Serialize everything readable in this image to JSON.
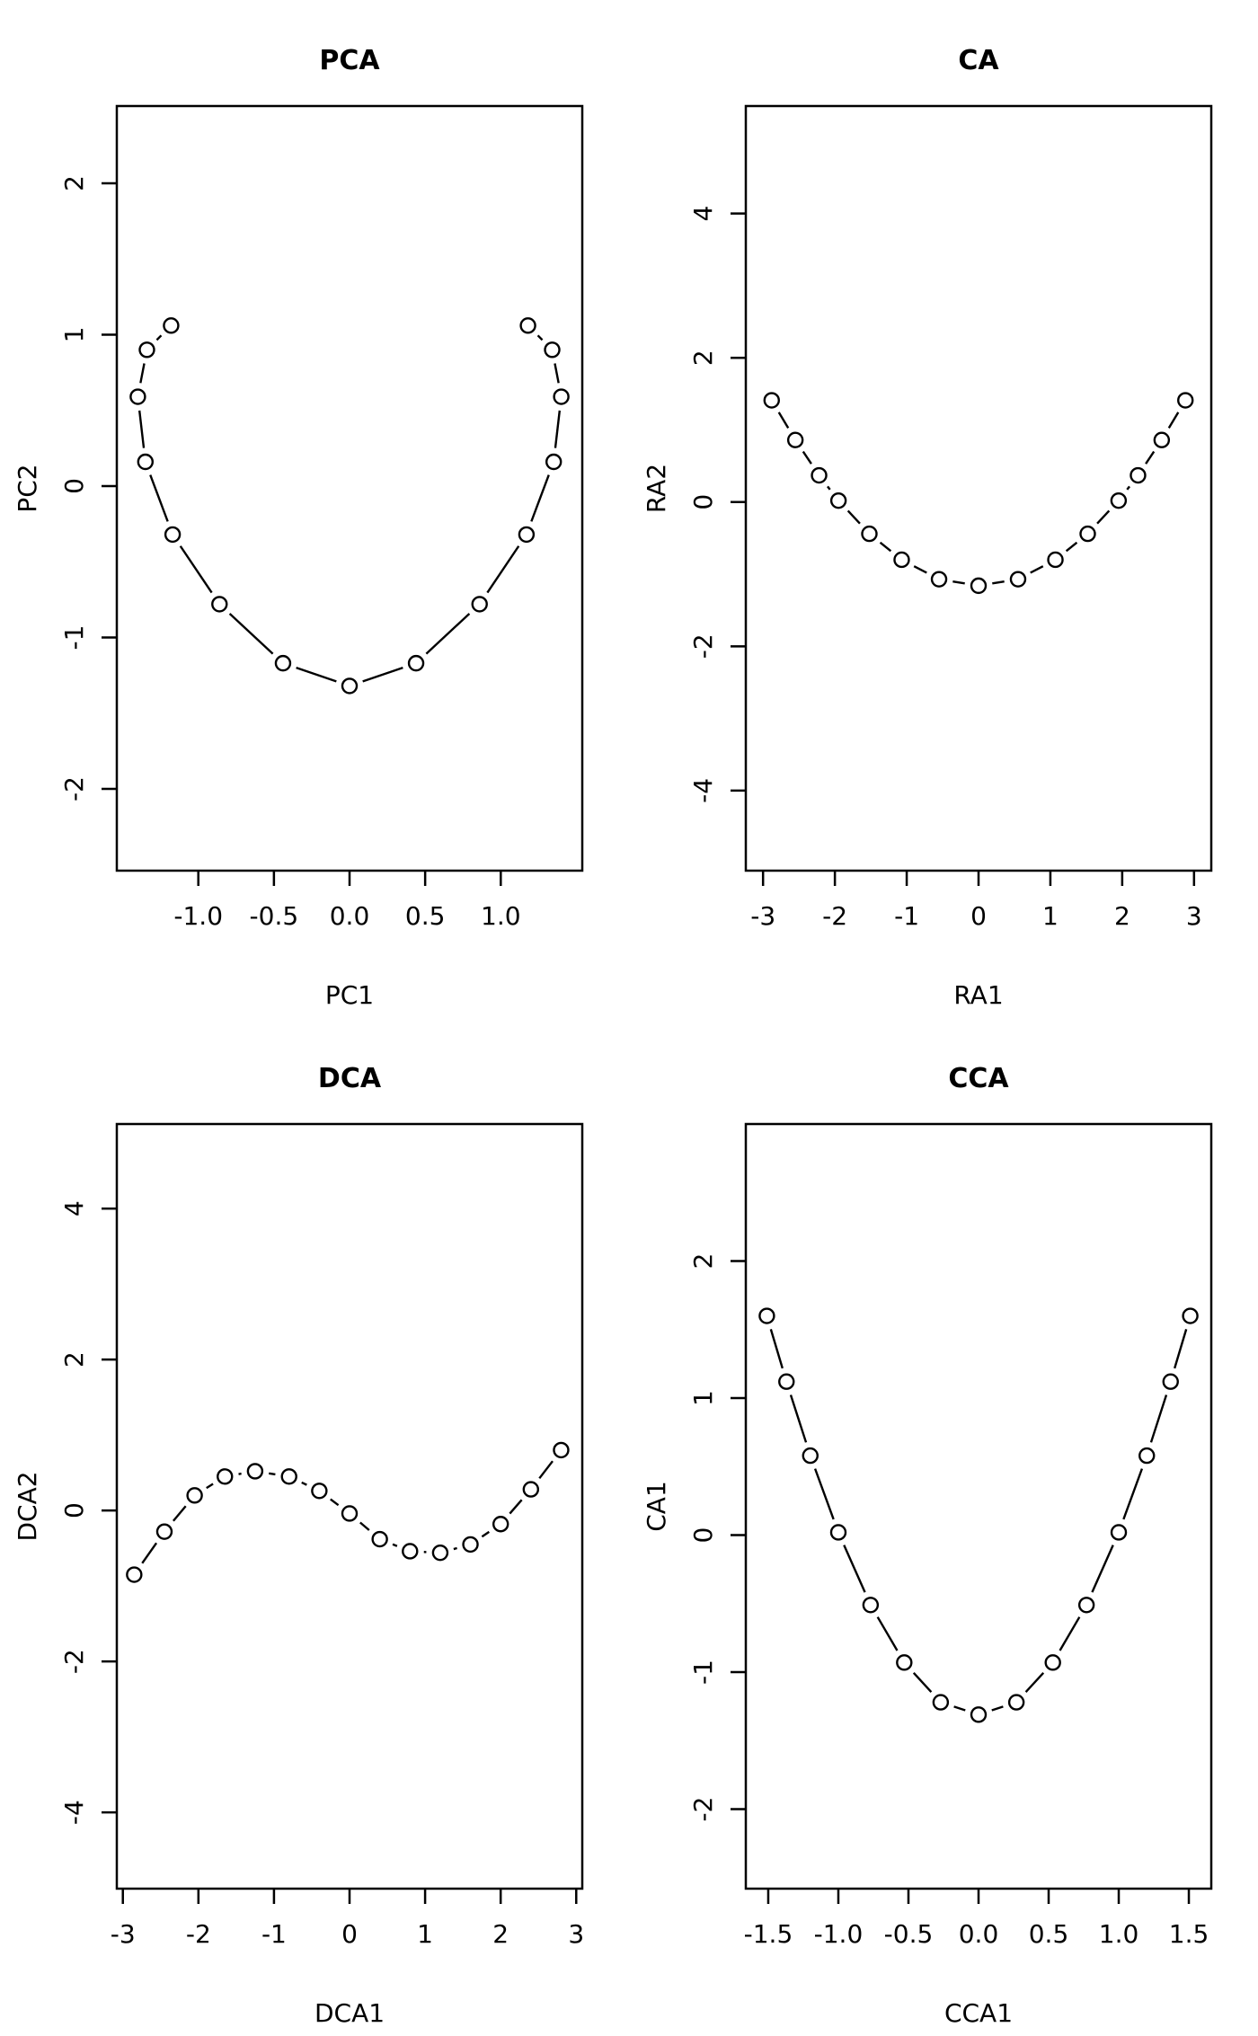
{
  "figure": {
    "background": "#ffffff",
    "foreground": "#000000",
    "marker": "open-circle",
    "line_type": "points-joined-by-segments"
  },
  "chart_data": [
    {
      "type": "scatter",
      "title": "PCA",
      "xlabel": "PC1",
      "ylabel": "PC2",
      "xlim": [
        -1.539,
        1.539
      ],
      "ylim": [
        -2.54,
        2.51
      ],
      "xticks": [
        -1.0,
        -0.5,
        0.0,
        0.5,
        1.0
      ],
      "xtick_labels": [
        "-1.0",
        "-0.5",
        "0.0",
        "0.5",
        "1.0"
      ],
      "yticks": [
        -2,
        -1,
        0,
        1,
        2
      ],
      "ytick_labels": [
        "-2",
        "-1",
        "0",
        "1",
        "2"
      ],
      "x": [
        -1.18,
        -1.34,
        -1.4,
        -1.35,
        -1.17,
        -0.86,
        -0.44,
        0.0,
        0.44,
        0.86,
        1.17,
        1.35,
        1.4,
        1.34,
        1.18
      ],
      "y": [
        1.06,
        0.9,
        0.59,
        0.16,
        -0.32,
        -0.78,
        -1.17,
        -1.32,
        -1.17,
        -0.78,
        -0.32,
        0.16,
        0.59,
        0.9,
        1.06
      ]
    },
    {
      "type": "scatter",
      "title": "CA",
      "xlabel": "RA1",
      "ylabel": "RA2",
      "xlim": [
        -3.24,
        3.24
      ],
      "ylim": [
        -5.11,
        5.49
      ],
      "xticks": [
        -3,
        -2,
        -1,
        0,
        1,
        2,
        3
      ],
      "xtick_labels": [
        "-3",
        "-2",
        "-1",
        "0",
        "1",
        "2",
        "3"
      ],
      "yticks": [
        -4,
        -2,
        0,
        2,
        4
      ],
      "ytick_labels": [
        "-4",
        "-2",
        "0",
        "2",
        "4"
      ],
      "x": [
        -2.88,
        -2.55,
        -2.22,
        -1.95,
        -1.52,
        -1.07,
        -0.55,
        0.0,
        0.55,
        1.07,
        1.52,
        1.95,
        2.22,
        2.55,
        2.88
      ],
      "y": [
        1.41,
        0.86,
        0.37,
        0.02,
        -0.44,
        -0.8,
        -1.07,
        -1.16,
        -1.07,
        -0.8,
        -0.44,
        0.02,
        0.37,
        0.86,
        1.41
      ]
    },
    {
      "type": "scatter",
      "title": "DCA",
      "xlabel": "DCA1",
      "ylabel": "DCA2",
      "xlim": [
        -3.08,
        3.08
      ],
      "ylim": [
        -5.01,
        5.12
      ],
      "xticks": [
        -3,
        -2,
        -1,
        0,
        1,
        2,
        3
      ],
      "xtick_labels": [
        "-3",
        "-2",
        "-1",
        "0",
        "1",
        "2",
        "3"
      ],
      "yticks": [
        -4,
        -2,
        0,
        2,
        4
      ],
      "ytick_labels": [
        "-4",
        "-2",
        "0",
        "2",
        "4"
      ],
      "x": [
        -2.85,
        -2.45,
        -2.05,
        -1.65,
        -1.25,
        -0.8,
        -0.4,
        0.0,
        0.4,
        0.8,
        1.2,
        1.6,
        2.0,
        2.4,
        2.8
      ],
      "y": [
        -0.85,
        -0.28,
        0.2,
        0.45,
        0.52,
        0.45,
        0.26,
        -0.04,
        -0.38,
        -0.54,
        -0.56,
        -0.45,
        -0.18,
        0.28,
        0.8
      ]
    },
    {
      "type": "scatter",
      "title": "CCA",
      "xlabel": "CCA1",
      "ylabel": "CA1",
      "xlim": [
        -1.66,
        1.66
      ],
      "ylim": [
        -2.58,
        3.0
      ],
      "xticks": [
        -1.5,
        -1.0,
        -0.5,
        0.0,
        0.5,
        1.0,
        1.5
      ],
      "xtick_labels": [
        "-1.5",
        "-1.0",
        "-0.5",
        "0.0",
        "0.5",
        "1.0",
        "1.5"
      ],
      "yticks": [
        -2,
        -1,
        0,
        1,
        2
      ],
      "ytick_labels": [
        "-2",
        "-1",
        "0",
        "1",
        "2"
      ],
      "x": [
        -1.51,
        -1.37,
        -1.2,
        -1.0,
        -0.77,
        -0.53,
        -0.27,
        0.0,
        0.27,
        0.53,
        0.77,
        1.0,
        1.2,
        1.37,
        1.51
      ],
      "y": [
        1.6,
        1.12,
        0.58,
        0.02,
        -0.51,
        -0.93,
        -1.22,
        -1.31,
        -1.22,
        -0.93,
        -0.51,
        0.02,
        0.58,
        1.12,
        1.6
      ]
    }
  ]
}
